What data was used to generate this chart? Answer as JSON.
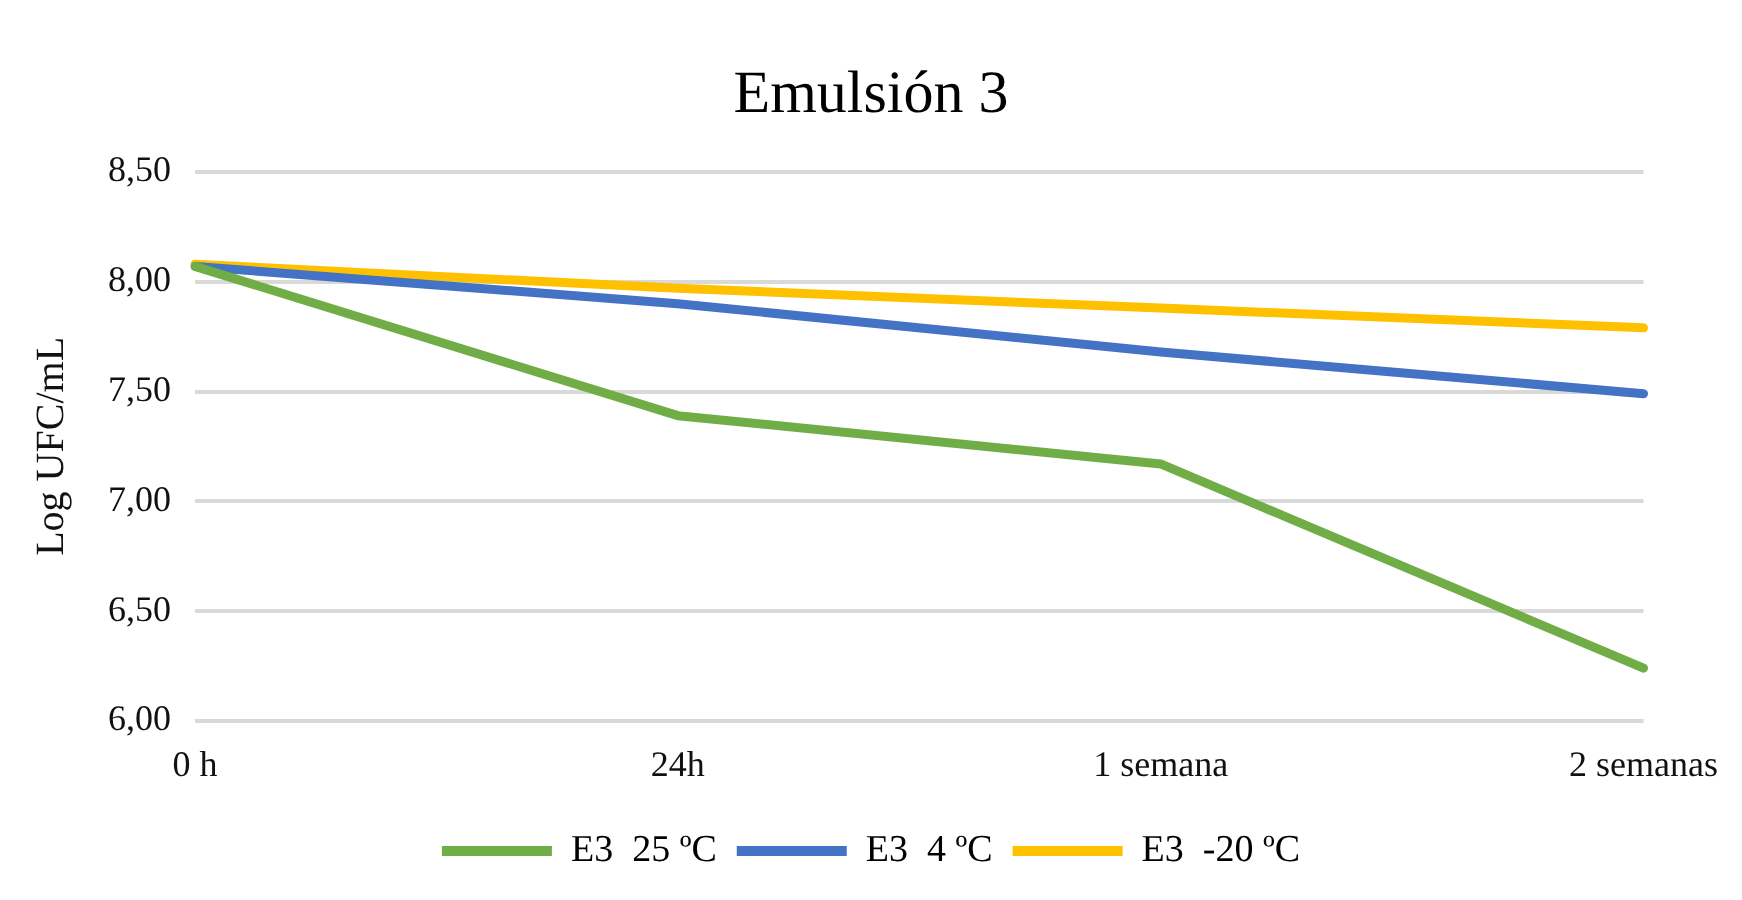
{
  "chart_data": {
    "type": "line",
    "title": "Emulsión 3",
    "ylabel": "Log UFC/mL",
    "categories": [
      "0 h",
      "24h",
      "1 semana",
      "2 semanas"
    ],
    "series": [
      {
        "name": "E3  25 ºC",
        "color": "#70ad47",
        "values": [
          8.07,
          7.39,
          7.17,
          6.24
        ]
      },
      {
        "name": "E3  4 ºC",
        "color": "#4472c4",
        "values": [
          8.07,
          7.9,
          7.68,
          7.49
        ]
      },
      {
        "name": "E3  -20 ºC",
        "color": "#ffc000",
        "values": [
          8.08,
          7.97,
          7.88,
          7.79
        ]
      }
    ],
    "ylim": [
      6,
      8.5
    ],
    "yticks": [
      {
        "value": 6,
        "label": "6,00"
      },
      {
        "value": 6.5,
        "label": "6,50"
      },
      {
        "value": 7,
        "label": "7,00"
      },
      {
        "value": 7.5,
        "label": "7,50"
      },
      {
        "value": 8,
        "label": "8,00"
      },
      {
        "value": 8.5,
        "label": "8,50"
      }
    ],
    "grid": "y",
    "legend": "bottom",
    "marker": "none",
    "line_style": "solid"
  }
}
